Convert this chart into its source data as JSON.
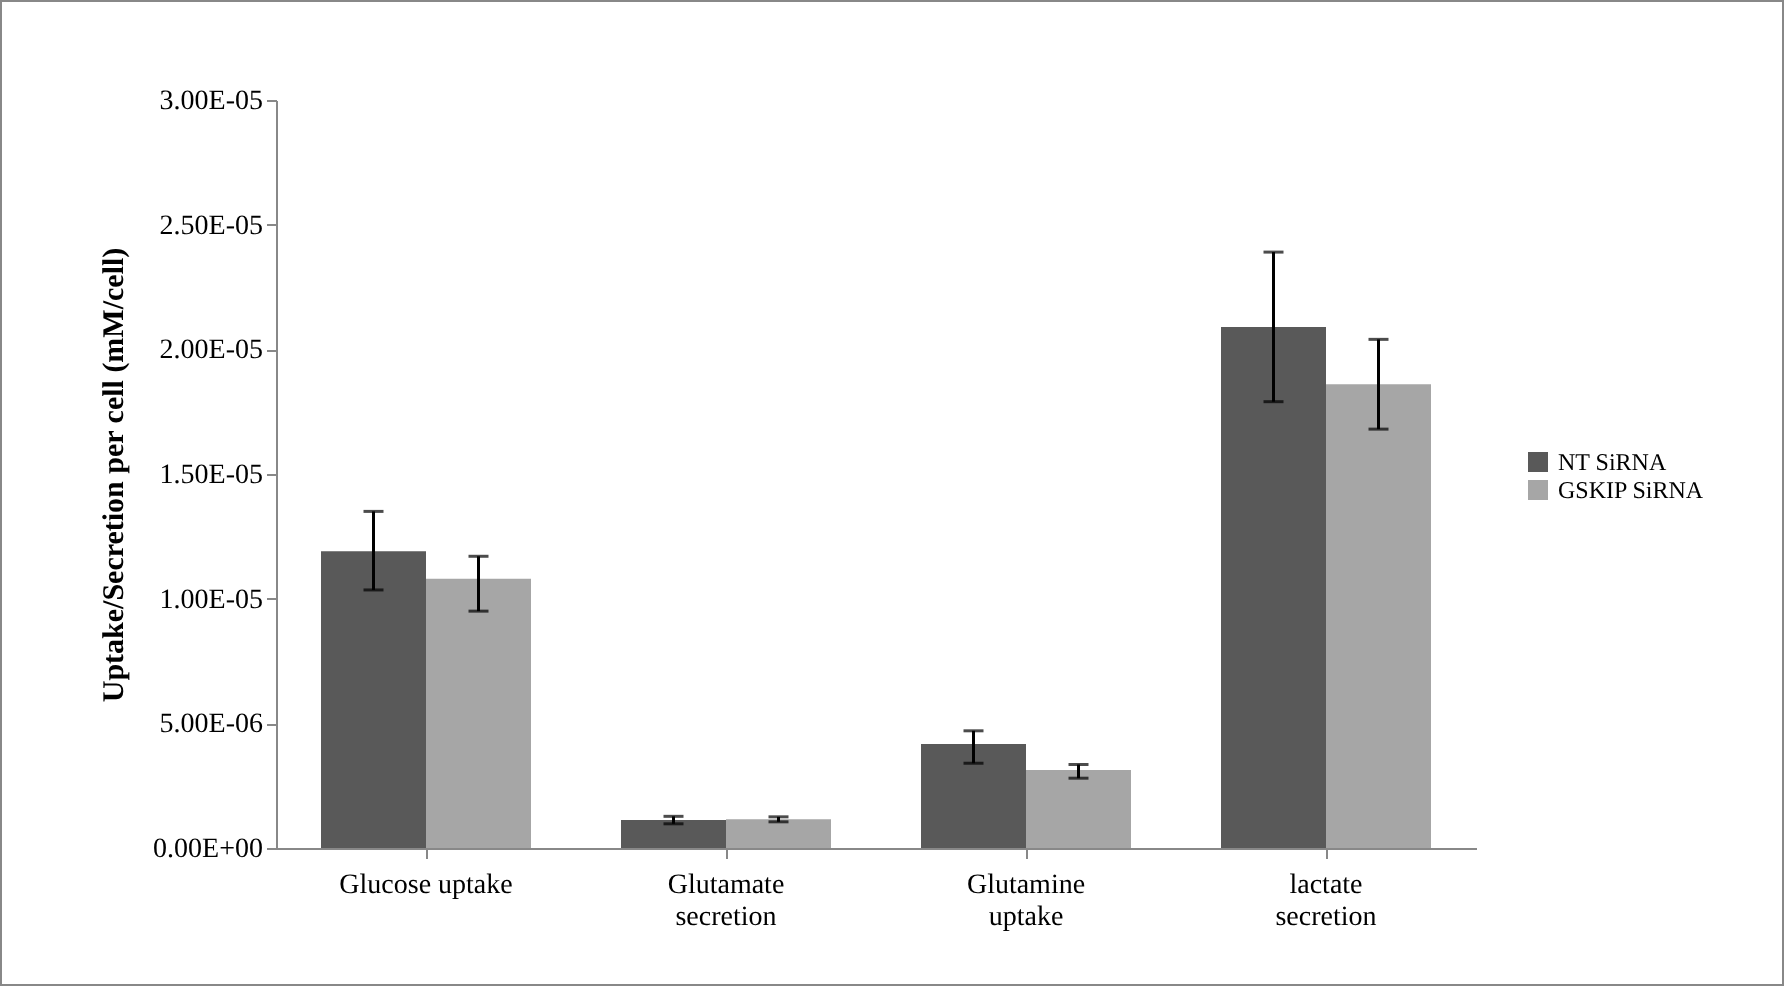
{
  "chart_data": {
    "type": "bar",
    "ylabel": "Uptake/Secretion per cell  (mM/cell)",
    "categories": [
      "Glucose uptake",
      "Glutamate secretion",
      "Glutamine uptake",
      "lactate secretion"
    ],
    "series": [
      {
        "name": "NT SiRNA",
        "color": "#595959",
        "values": [
          1.19e-05,
          1.12e-06,
          4.17e-06,
          2.09e-05
        ],
        "errors": [
          [
            1.035e-05,
            1.35e-05
          ],
          [
            9.7e-07,
            1.27e-06
          ],
          [
            3.4e-06,
            4.7e-06
          ],
          [
            1.79e-05,
            2.39e-05
          ]
        ]
      },
      {
        "name": "GSKIP SiRNA",
        "color": "#a6a6a6",
        "values": [
          1.08e-05,
          1.15e-06,
          3.13e-06,
          1.86e-05
        ],
        "errors": [
          [
            9.5e-06,
            1.17e-05
          ],
          [
            1.05e-06,
            1.25e-06
          ],
          [
            2.8e-06,
            3.35e-06
          ],
          [
            1.68e-05,
            2.04e-05
          ]
        ]
      }
    ],
    "ylim": [
      0,
      3e-05
    ],
    "yticks": [
      {
        "value": 0,
        "label": "0.00E+00"
      },
      {
        "value": 5e-06,
        "label": "5.00E-06"
      },
      {
        "value": 1e-05,
        "label": "1.00E-05"
      },
      {
        "value": 1.5e-05,
        "label": "1.50E-05"
      },
      {
        "value": 2e-05,
        "label": "2.00E-05"
      },
      {
        "value": 2.5e-05,
        "label": "2.50E-05"
      },
      {
        "value": 3e-05,
        "label": "3.00E-05"
      }
    ],
    "grid": false,
    "legend": "right"
  }
}
